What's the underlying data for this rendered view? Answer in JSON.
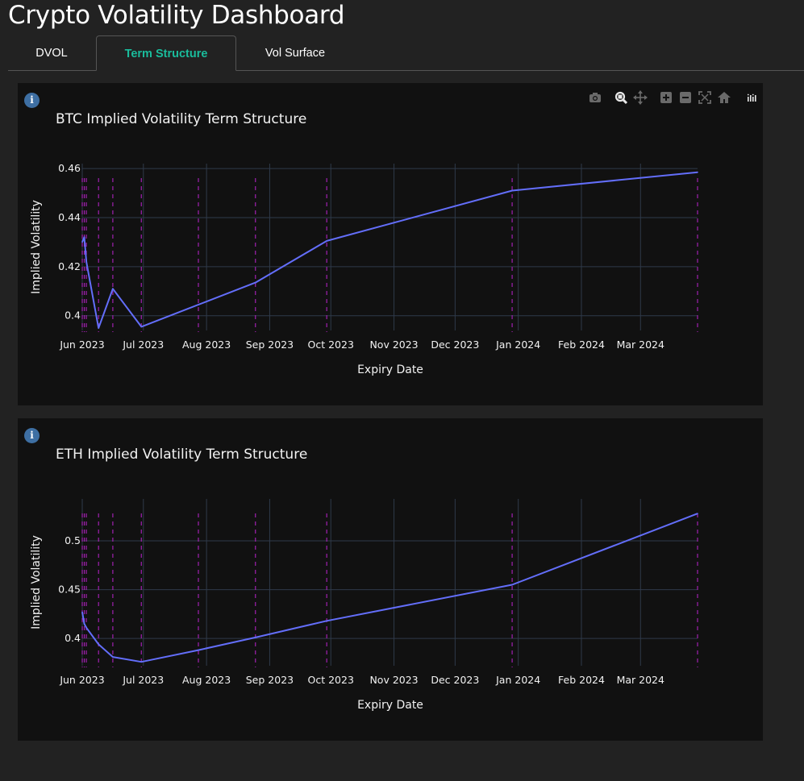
{
  "app": {
    "title": "Crypto Volatility Dashboard"
  },
  "tabs": [
    {
      "label": "DVOL",
      "active": false
    },
    {
      "label": "Term Structure",
      "active": true
    },
    {
      "label": "Vol Surface",
      "active": false
    }
  ],
  "toolbar": {
    "icons": [
      "camera-icon",
      "zoom-icon",
      "pan-icon",
      "zoom-in-icon",
      "zoom-out-icon",
      "autoscale-icon",
      "reset-axes-icon",
      "plotly-logo-icon"
    ]
  },
  "colors": {
    "line": "#636efa",
    "expiry_marker": "#a020b0",
    "grid": "#2f3a4a",
    "tab_active": "#1abc9c",
    "info_badge": "#3e6fa3"
  },
  "chart_data": [
    {
      "type": "line",
      "title": "BTC Implied Volatility Term Structure",
      "xlabel": "Expiry Date",
      "ylabel": "Implied Volatility",
      "x_ticks": [
        "Jun 2023",
        "Jul 2023",
        "Aug 2023",
        "Sep 2023",
        "Oct 2023",
        "Nov 2023",
        "Dec 2023",
        "Jan 2024",
        "Feb 2024",
        "Mar 2024"
      ],
      "y_ticks": [
        "0.4",
        "0.42",
        "0.44",
        "0.46"
      ],
      "ylim": [
        0.394,
        0.462
      ],
      "grid": true,
      "series": [
        {
          "x": [
            "2023-06-01",
            "2023-06-02",
            "2023-06-03",
            "2023-06-09",
            "2023-06-16",
            "2023-06-30",
            "2023-07-28",
            "2023-08-25",
            "2023-09-29",
            "2023-12-29",
            "2024-03-29"
          ],
          "values": [
            0.43,
            0.432,
            0.422,
            0.395,
            0.411,
            0.3955,
            0.4045,
            0.4135,
            0.4305,
            0.451,
            0.4585
          ]
        }
      ],
      "expiry_markers": [
        "2023-06-01",
        "2023-06-02",
        "2023-06-03",
        "2023-06-09",
        "2023-06-16",
        "2023-06-30",
        "2023-07-28",
        "2023-08-25",
        "2023-09-29",
        "2023-12-29",
        "2024-03-29"
      ]
    },
    {
      "type": "line",
      "title": "ETH Implied Volatility Term Structure",
      "xlabel": "Expiry Date",
      "ylabel": "Implied Volatility",
      "x_ticks": [
        "Jun 2023",
        "Jul 2023",
        "Aug 2023",
        "Sep 2023",
        "Oct 2023",
        "Nov 2023",
        "Dec 2023",
        "Jan 2024",
        "Feb 2024",
        "Mar 2024"
      ],
      "y_ticks": [
        "0.4",
        "0.45",
        "0.5"
      ],
      "ylim": [
        0.372,
        0.543
      ],
      "grid": true,
      "series": [
        {
          "x": [
            "2023-06-01",
            "2023-06-02",
            "2023-06-03",
            "2023-06-09",
            "2023-06-16",
            "2023-06-30",
            "2023-07-28",
            "2023-08-25",
            "2023-09-29",
            "2023-12-29",
            "2024-03-29"
          ],
          "values": [
            0.427,
            0.415,
            0.411,
            0.394,
            0.381,
            0.376,
            0.388,
            0.401,
            0.418,
            0.455,
            0.528
          ]
        }
      ],
      "expiry_markers": [
        "2023-06-01",
        "2023-06-02",
        "2023-06-03",
        "2023-06-09",
        "2023-06-16",
        "2023-06-30",
        "2023-07-28",
        "2023-08-25",
        "2023-09-29",
        "2023-12-29",
        "2024-03-29"
      ]
    }
  ]
}
